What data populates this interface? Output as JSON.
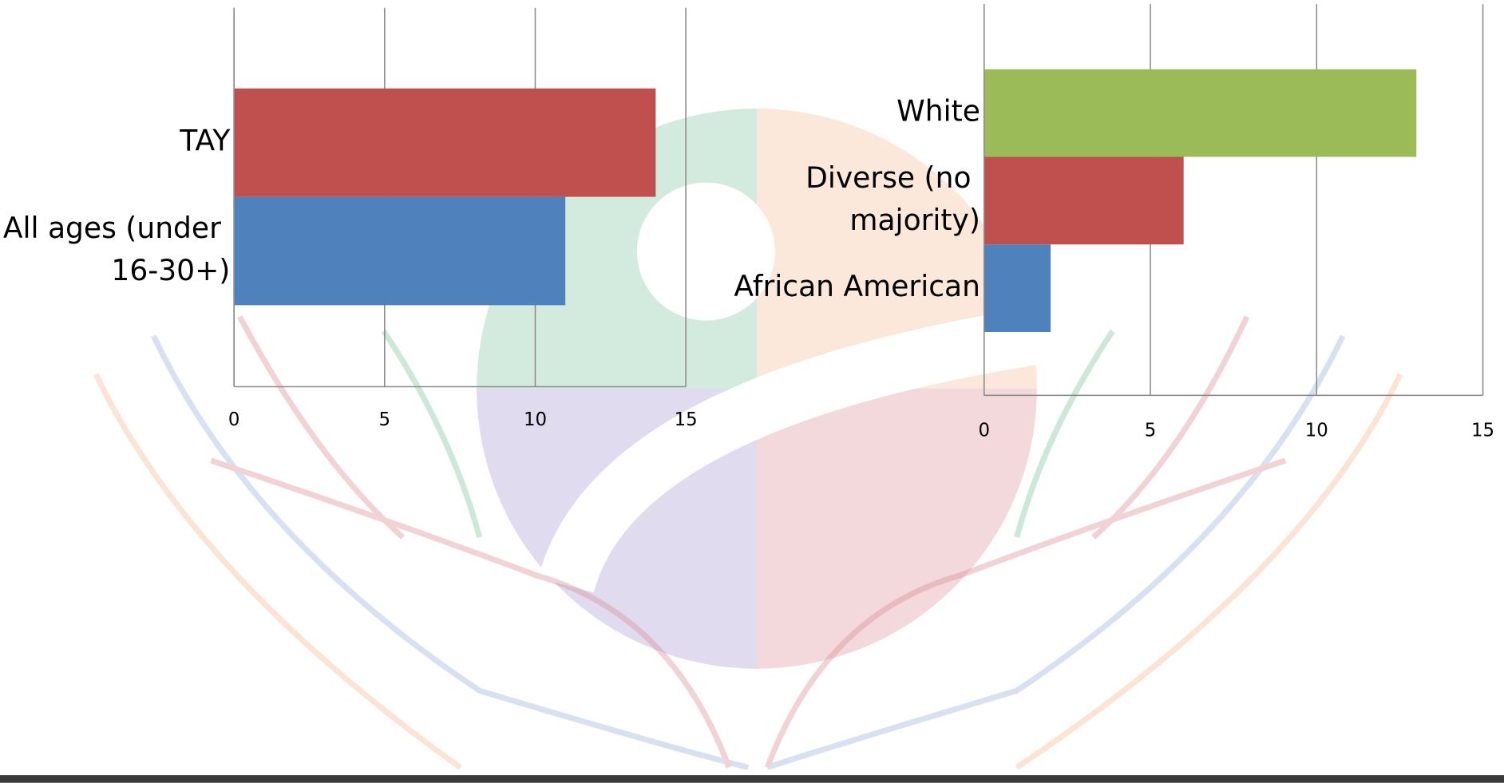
{
  "chart_data": [
    {
      "type": "bar",
      "orientation": "horizontal",
      "categories": [
        "TAY",
        "All ages (under 16-30+)"
      ],
      "values": [
        14,
        11
      ],
      "colors": [
        "#c0504d",
        "#4f81bd"
      ],
      "xlim": [
        0,
        15
      ],
      "xticks": [
        0,
        5,
        10,
        15
      ],
      "grid": true
    },
    {
      "type": "bar",
      "orientation": "horizontal",
      "categories": [
        "White",
        "Diverse (no majority)",
        "African American"
      ],
      "values": [
        13,
        6,
        2
      ],
      "colors": [
        "#9bbb59",
        "#c0504d",
        "#4f81bd"
      ],
      "xlim": [
        0,
        15
      ],
      "xticks": [
        0,
        5,
        10,
        15
      ],
      "grid": true
    }
  ]
}
